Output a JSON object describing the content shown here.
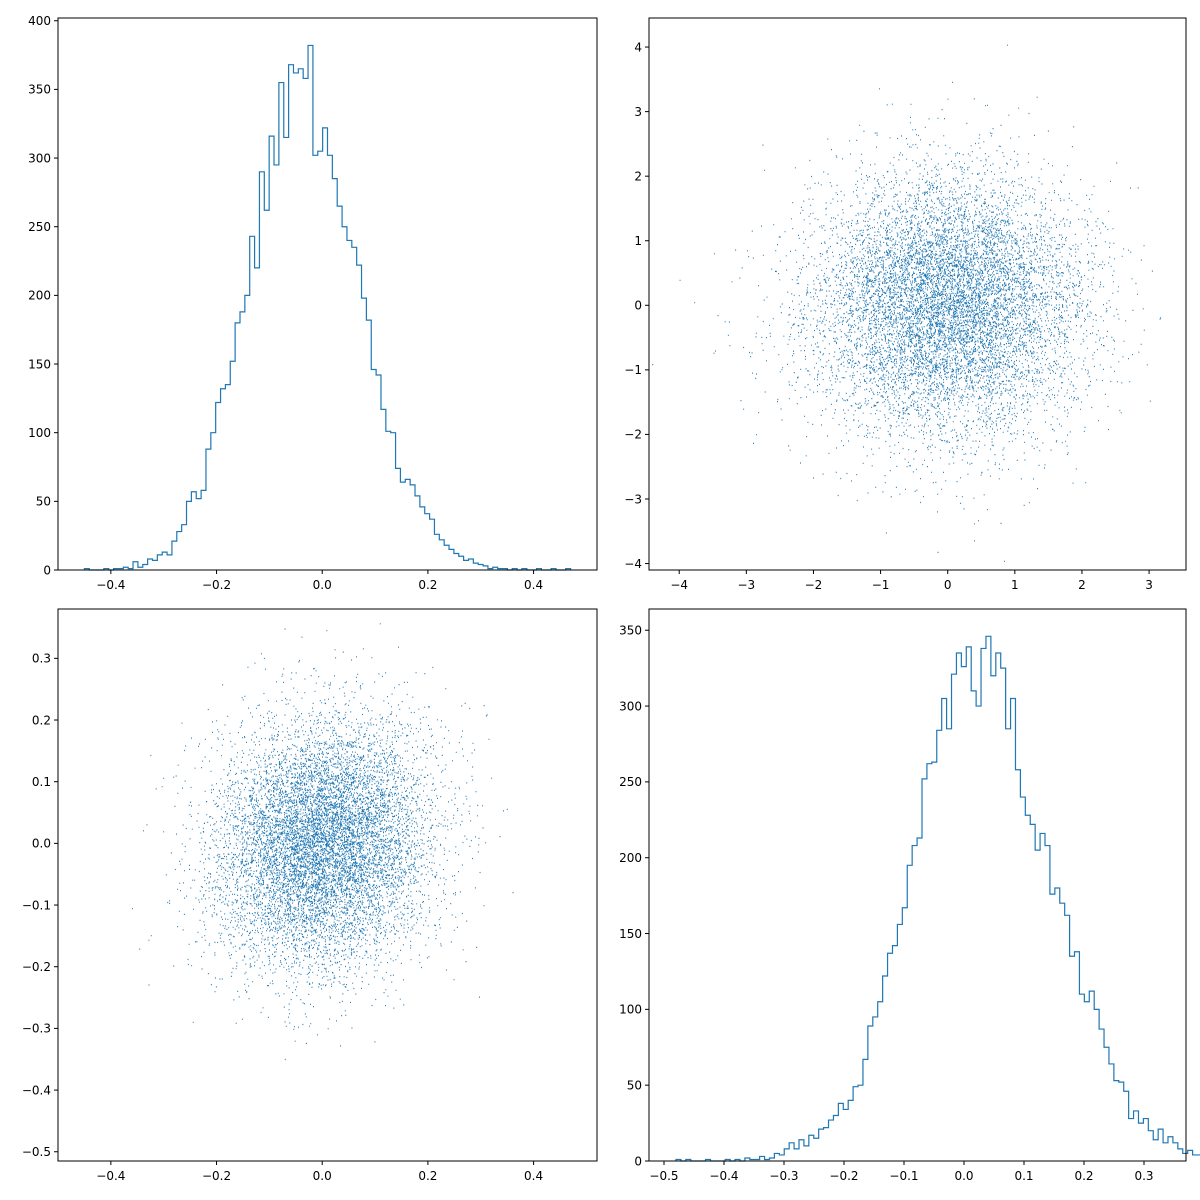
{
  "figure": {
    "background": "#ffffff",
    "grid": false,
    "legend": "none"
  },
  "chart_data": [
    {
      "id": "hist-top-left",
      "type": "histogram",
      "title": "",
      "xlabel": "",
      "ylabel": "",
      "xlim": [
        -0.5,
        0.52
      ],
      "ylim": [
        0,
        402
      ],
      "xticks": [
        -0.4,
        -0.2,
        0.0,
        0.2,
        0.4
      ],
      "xtick_labels": [
        "−0.4",
        "−0.2",
        "0.0",
        "0.2",
        "0.4"
      ],
      "yticks": [
        0,
        50,
        100,
        150,
        200,
        250,
        300,
        350,
        400
      ],
      "ytick_labels": [
        "0",
        "50",
        "100",
        "150",
        "200",
        "250",
        "300",
        "350",
        "400"
      ],
      "color": "#1f77b4",
      "bin_start": -0.45,
      "bin_width": 0.0092,
      "counts": [
        1,
        0,
        0,
        0,
        1,
        0,
        1,
        1,
        2,
        1,
        6,
        2,
        4,
        8,
        7,
        11,
        13,
        11,
        21,
        28,
        33,
        50,
        57,
        52,
        58,
        88,
        100,
        122,
        132,
        135,
        152,
        180,
        188,
        200,
        243,
        220,
        290,
        262,
        316,
        295,
        355,
        315,
        368,
        362,
        365,
        358,
        382,
        302,
        305,
        322,
        302,
        285,
        265,
        250,
        240,
        235,
        222,
        198,
        182,
        146,
        142,
        117,
        101,
        100,
        74,
        64,
        66,
        62,
        54,
        46,
        41,
        37,
        26,
        22,
        18,
        15,
        12,
        10,
        7,
        8,
        5,
        4,
        3,
        1,
        2,
        1,
        1,
        0,
        1,
        0,
        1,
        0,
        0,
        1,
        0,
        0,
        1,
        0,
        0,
        1
      ]
    },
    {
      "id": "scatter-top-right",
      "type": "scatter",
      "title": "",
      "xlabel": "",
      "ylabel": "",
      "xlim": [
        -4.45,
        3.55
      ],
      "ylim": [
        -4.1,
        4.45
      ],
      "xticks": [
        -4,
        -3,
        -2,
        -1,
        0,
        1,
        2,
        3
      ],
      "xtick_labels": [
        "−4",
        "−3",
        "−2",
        "−1",
        "0",
        "1",
        "2",
        "3"
      ],
      "yticks": [
        -4,
        -3,
        -2,
        -1,
        0,
        1,
        2,
        3,
        4
      ],
      "ytick_labels": [
        "−4",
        "−3",
        "−2",
        "−1",
        "0",
        "1",
        "2",
        "3",
        "4"
      ],
      "color": "#1f77b4",
      "distribution": {
        "n": 10000,
        "mean_x": 0.0,
        "mean_y": 0.0,
        "std_x": 1.0,
        "std_y": 1.0,
        "correlation": 0.0
      }
    },
    {
      "id": "scatter-bottom-left",
      "type": "scatter",
      "title": "",
      "xlabel": "",
      "ylabel": "",
      "xlim": [
        -0.5,
        0.52
      ],
      "ylim": [
        -0.515,
        0.38
      ],
      "xticks": [
        -0.4,
        -0.2,
        0.0,
        0.2,
        0.4
      ],
      "xtick_labels": [
        "−0.4",
        "−0.2",
        "0.0",
        "0.2",
        "0.4"
      ],
      "yticks": [
        -0.5,
        -0.4,
        -0.3,
        -0.2,
        -0.1,
        0.0,
        0.1,
        0.2,
        0.3
      ],
      "ytick_labels": [
        "−0.5",
        "−0.4",
        "−0.3",
        "−0.2",
        "−0.1",
        "0.0",
        "0.1",
        "0.2",
        "0.3"
      ],
      "color": "#1f77b4",
      "distribution": {
        "n": 10000,
        "mean_x": 0.0,
        "mean_y": 0.0,
        "std_x": 0.1,
        "std_y": 0.1,
        "correlation": 0.1
      }
    },
    {
      "id": "hist-bottom-right",
      "type": "histogram",
      "title": "",
      "xlabel": "",
      "ylabel": "",
      "xlim": [
        -0.525,
        0.37
      ],
      "ylim": [
        0,
        364
      ],
      "xticks": [
        -0.5,
        -0.4,
        -0.3,
        -0.2,
        -0.1,
        0.0,
        0.1,
        0.2,
        0.3
      ],
      "xtick_labels": [
        "−0.5",
        "−0.4",
        "−0.3",
        "−0.2",
        "−0.1",
        "0.0",
        "0.1",
        "0.2",
        "0.3"
      ],
      "yticks": [
        0,
        50,
        100,
        150,
        200,
        250,
        300,
        350
      ],
      "ytick_labels": [
        "0",
        "50",
        "100",
        "150",
        "200",
        "250",
        "300",
        "350"
      ],
      "color": "#1f77b4",
      "bin_start": -0.48,
      "bin_width": 0.0082,
      "counts": [
        1,
        0,
        1,
        0,
        0,
        0,
        1,
        0,
        0,
        0,
        1,
        0,
        1,
        0,
        2,
        1,
        1,
        3,
        1,
        2,
        5,
        4,
        8,
        12,
        8,
        14,
        10,
        17,
        15,
        21,
        22,
        27,
        30,
        38,
        34,
        40,
        49,
        50,
        67,
        89,
        95,
        105,
        122,
        137,
        142,
        156,
        167,
        195,
        208,
        213,
        252,
        262,
        263,
        284,
        305,
        285,
        321,
        335,
        326,
        339,
        310,
        300,
        338,
        346,
        320,
        335,
        325,
        285,
        305,
        258,
        240,
        228,
        222,
        205,
        216,
        208,
        176,
        180,
        170,
        162,
        135,
        138,
        110,
        105,
        112,
        100,
        87,
        75,
        64,
        53,
        52,
        46,
        28,
        33,
        25,
        28,
        20,
        14,
        21,
        12,
        16,
        12,
        8,
        5,
        7,
        4,
        4,
        2
      ]
    }
  ]
}
